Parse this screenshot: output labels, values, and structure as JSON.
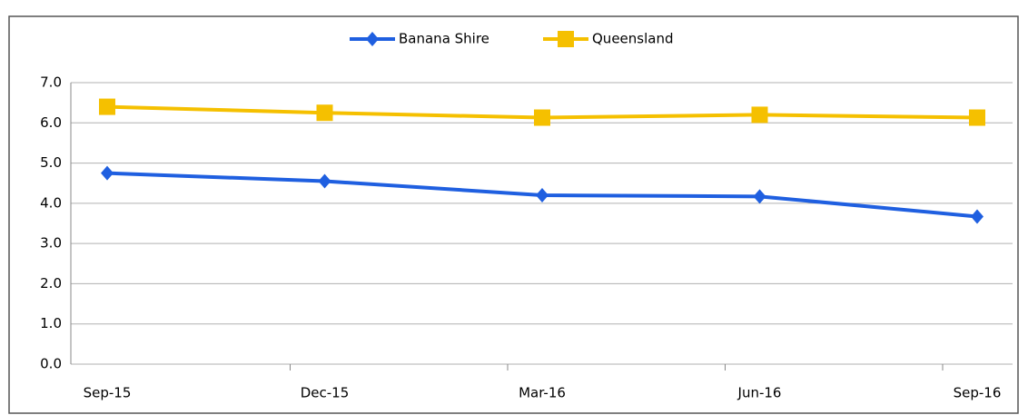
{
  "chart_data": {
    "type": "line",
    "categories": [
      "Sep-15",
      "Dec-15",
      "Mar-16",
      "Jun-16",
      "Sep-16"
    ],
    "series": [
      {
        "name": "Banana Shire",
        "color": "#1f5fe0",
        "marker": "diamond",
        "values": [
          4.75,
          4.55,
          4.2,
          4.17,
          3.67
        ]
      },
      {
        "name": "Queensland",
        "color": "#f5c000",
        "marker": "square",
        "values": [
          6.4,
          6.25,
          6.13,
          6.2,
          6.13
        ]
      }
    ],
    "ylim": [
      0,
      7
    ],
    "yticks": [
      {
        "value": 0,
        "label": "0.0"
      },
      {
        "value": 1,
        "label": "1.0"
      },
      {
        "value": 2,
        "label": "2.0"
      },
      {
        "value": 3,
        "label": "3.0"
      },
      {
        "value": 4,
        "label": "4.0"
      },
      {
        "value": 5,
        "label": "5.0"
      },
      {
        "value": 6,
        "label": "6.0"
      },
      {
        "value": 7,
        "label": "7.0"
      }
    ],
    "grid": true,
    "legend": "top"
  }
}
